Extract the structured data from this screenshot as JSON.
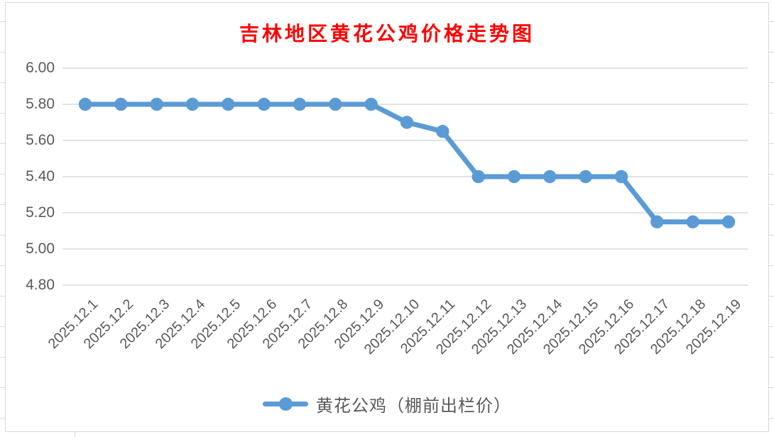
{
  "styles": {
    "line_color": "#5b9bd5",
    "grid_color": "#d9d9d9",
    "axis_text_color": "#595959",
    "title_color": "#ff0000",
    "sheet_grid_color": "#d9d9d9",
    "chart_border_color": "#d9d9d9"
  },
  "chart_data": {
    "type": "line",
    "title": "吉林地区黄花公鸡价格走势图",
    "categories": [
      "2025.12.1",
      "2025.12.2",
      "2025.12.3",
      "2025.12.4",
      "2025.12.5",
      "2025.12.6",
      "2025.12.7",
      "2025.12.8",
      "2025.12.9",
      "2025.12.10",
      "2025.12.11",
      "2025.12.12",
      "2025.12.13",
      "2025.12.14",
      "2025.12.15",
      "2025.12.16",
      "2025.12.17",
      "2025.12.18",
      "2025.12.19"
    ],
    "series": [
      {
        "name": "黄花公鸡（棚前出栏价）",
        "values": [
          5.8,
          5.8,
          5.8,
          5.8,
          5.8,
          5.8,
          5.8,
          5.8,
          5.8,
          5.7,
          5.65,
          5.4,
          5.4,
          5.4,
          5.4,
          5.4,
          5.15,
          5.15,
          5.15
        ]
      }
    ],
    "xlabel": "",
    "ylabel": "",
    "ylim": [
      4.8,
      6.0
    ],
    "yticks": [
      6.0,
      5.8,
      5.6,
      5.4,
      5.2,
      5.0,
      4.8
    ],
    "ytick_labels": [
      "6.00",
      "5.80",
      "5.60",
      "5.40",
      "5.20",
      "5.00",
      "4.80"
    ],
    "grid": "horizontal",
    "legend_position": "bottom"
  }
}
